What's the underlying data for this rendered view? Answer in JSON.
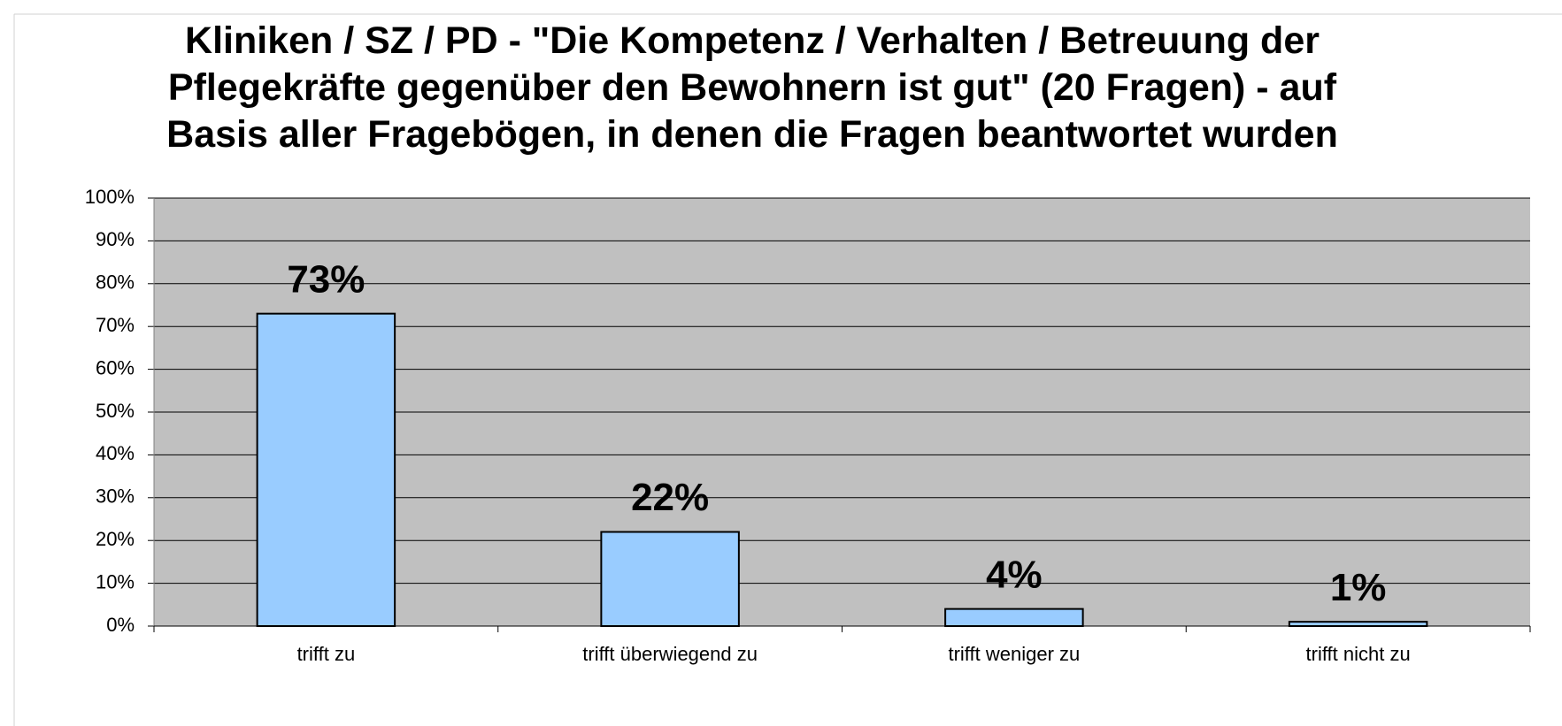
{
  "chart_data": {
    "type": "bar",
    "title": "Kliniken / SZ / PD - \"Die Kompetenz / Verhalten / Betreuung der Pflegekräfte gegenüber den Bewohnern ist gut\" (20 Fragen) - auf Basis aller Fragebögen, in denen die Fragen beantwortet wurden",
    "categories": [
      "trifft zu",
      "trifft überwiegend zu",
      "trifft weniger zu",
      "trifft nicht zu"
    ],
    "values": [
      73,
      22,
      4,
      1
    ],
    "value_labels": [
      "73%",
      "22%",
      "4%",
      "1%"
    ],
    "color": "#99ccff",
    "ylim": [
      0,
      100
    ],
    "yticks": [
      {
        "value": 0,
        "label": "0%"
      },
      {
        "value": 10,
        "label": "10%"
      },
      {
        "value": 20,
        "label": "20%"
      },
      {
        "value": 30,
        "label": "30%"
      },
      {
        "value": 40,
        "label": "40%"
      },
      {
        "value": 50,
        "label": "50%"
      },
      {
        "value": 60,
        "label": "60%"
      },
      {
        "value": 70,
        "label": "70%"
      },
      {
        "value": 80,
        "label": "80%"
      },
      {
        "value": 90,
        "label": "90%"
      },
      {
        "value": 100,
        "label": "100%"
      }
    ],
    "grid": true
  }
}
